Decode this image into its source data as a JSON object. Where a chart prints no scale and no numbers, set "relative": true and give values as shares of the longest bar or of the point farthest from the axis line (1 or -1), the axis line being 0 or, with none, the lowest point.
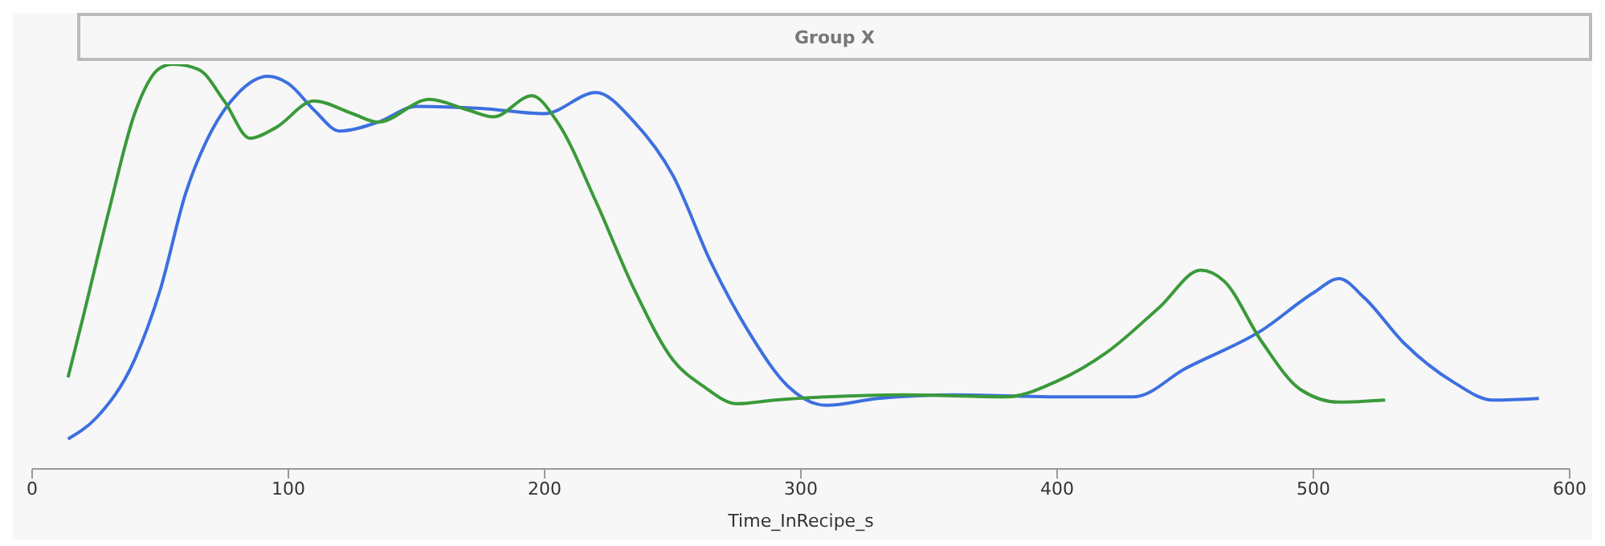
{
  "chart_data": {
    "type": "line",
    "title": "Group X",
    "xlabel": "Time_InRecipe_s",
    "relative": true,
    "tick_labels": "x",
    "xlim": [
      0,
      600
    ],
    "xticks": [
      0,
      100,
      200,
      300,
      400,
      500,
      600
    ],
    "series": [
      {
        "color": "#3d6fe0",
        "x": [
          14,
          25,
          40,
          50,
          60,
          70,
          80,
          92,
          100,
          110,
          120,
          135,
          150,
          175,
          200,
          220,
          235,
          250,
          265,
          280,
          295,
          310,
          330,
          360,
          400,
          430,
          450,
          480,
          500,
          510,
          520,
          535,
          555,
          570,
          588
        ],
        "values": [
          0.074,
          0.126,
          0.27,
          0.443,
          0.683,
          0.835,
          0.926,
          0.97,
          0.952,
          0.887,
          0.835,
          0.857,
          0.896,
          0.891,
          0.878,
          0.93,
          0.857,
          0.726,
          0.509,
          0.335,
          0.204,
          0.157,
          0.174,
          0.183,
          0.178,
          0.178,
          0.248,
          0.343,
          0.435,
          0.47,
          0.422,
          0.313,
          0.213,
          0.17,
          0.174
        ]
      },
      {
        "color": "#3a9a3a",
        "x": [
          14,
          20,
          30,
          40,
          50,
          55,
          65,
          75,
          85,
          95,
          110,
          125,
          135,
          155,
          170,
          180,
          195,
          205,
          220,
          235,
          250,
          262,
          275,
          290,
          310,
          340,
          380,
          400,
          420,
          440,
          456,
          465,
          480,
          495,
          510,
          528
        ],
        "values": [
          0.226,
          0.378,
          0.639,
          0.878,
          0.991,
          1.0,
          0.987,
          0.909,
          0.817,
          0.843,
          0.909,
          0.878,
          0.857,
          0.913,
          0.887,
          0.87,
          0.922,
          0.857,
          0.661,
          0.443,
          0.27,
          0.204,
          0.161,
          0.17,
          0.178,
          0.183,
          0.178,
          0.217,
          0.291,
          0.4,
          0.491,
          0.465,
          0.313,
          0.196,
          0.165,
          0.17
        ]
      }
    ]
  }
}
